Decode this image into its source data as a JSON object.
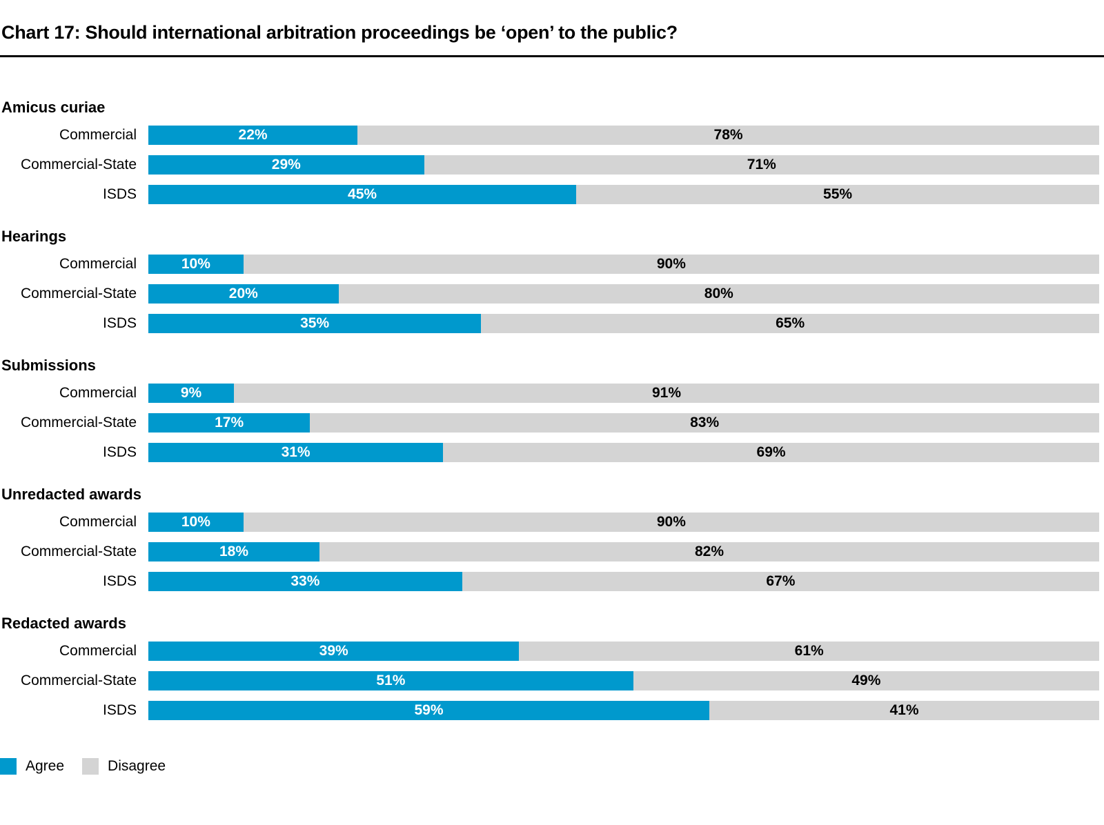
{
  "title": "Chart 17: Should international arbitration proceedings be ‘open’ to the public?",
  "colors": {
    "agree": "#0099CD",
    "disagree": "#D4D4D4",
    "agree_label_text": "#FFFFFF",
    "disagree_label_text": "#000000",
    "rule": "#000000"
  },
  "legend": [
    {
      "label": "Agree",
      "color": "#0099CD"
    },
    {
      "label": "Disagree",
      "color": "#D4D4D4"
    }
  ],
  "chart_data": {
    "type": "bar",
    "orientation": "horizontal",
    "stacked": true,
    "unit": "%",
    "xlim": [
      0,
      100
    ],
    "title": "Chart 17: Should international arbitration proceedings be ‘open’ to the public?",
    "series_names": [
      "Agree",
      "Disagree"
    ],
    "legend_position": "bottom-left",
    "value_labels": "inside-centered",
    "groups": [
      {
        "label": "Amicus curiae",
        "rows": [
          {
            "label": "Commercial",
            "agree": 22,
            "disagree": 78
          },
          {
            "label": "Commercial-State",
            "agree": 29,
            "disagree": 71
          },
          {
            "label": "ISDS",
            "agree": 45,
            "disagree": 55
          }
        ]
      },
      {
        "label": "Hearings",
        "rows": [
          {
            "label": "Commercial",
            "agree": 10,
            "disagree": 90
          },
          {
            "label": "Commercial-State",
            "agree": 20,
            "disagree": 80
          },
          {
            "label": "ISDS",
            "agree": 35,
            "disagree": 65
          }
        ]
      },
      {
        "label": "Submissions",
        "rows": [
          {
            "label": "Commercial",
            "agree": 9,
            "disagree": 91
          },
          {
            "label": "Commercial-State",
            "agree": 17,
            "disagree": 83
          },
          {
            "label": "ISDS",
            "agree": 31,
            "disagree": 69
          }
        ]
      },
      {
        "label": "Unredacted awards",
        "rows": [
          {
            "label": "Commercial",
            "agree": 10,
            "disagree": 90
          },
          {
            "label": "Commercial-State",
            "agree": 18,
            "disagree": 82
          },
          {
            "label": "ISDS",
            "agree": 33,
            "disagree": 67
          }
        ]
      },
      {
        "label": "Redacted awards",
        "rows": [
          {
            "label": "Commercial",
            "agree": 39,
            "disagree": 61
          },
          {
            "label": "Commercial-State",
            "agree": 51,
            "disagree": 49
          },
          {
            "label": "ISDS",
            "agree": 59,
            "disagree": 41
          }
        ]
      }
    ]
  }
}
